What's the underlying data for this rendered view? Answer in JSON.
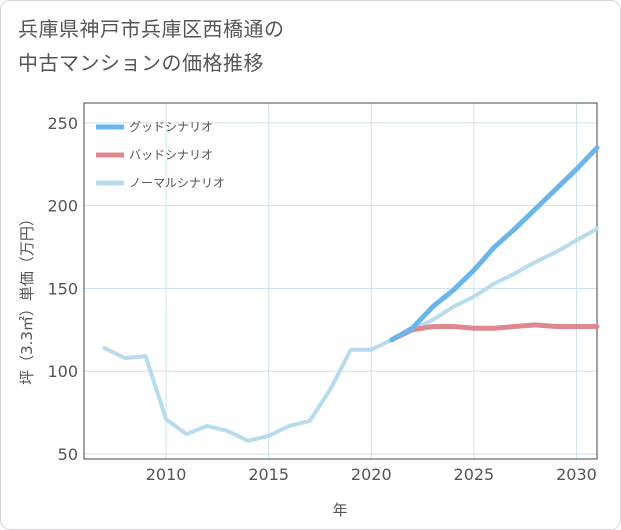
{
  "title": {
    "line1": "兵庫県神戸市兵庫区西橋通の",
    "line2": "中古マンションの価格推移"
  },
  "chart_data": {
    "type": "line",
    "xlabel": "年",
    "ylabel": "坪（3.3㎡）単価（万円）",
    "xlim": [
      2006,
      2031
    ],
    "ylim": [
      47,
      262
    ],
    "xticks": [
      2010,
      2015,
      2020,
      2025,
      2030
    ],
    "yticks": [
      50,
      100,
      150,
      200,
      250
    ],
    "grid": true,
    "legend_position": "top-left",
    "series": [
      {
        "name": "グッドシナリオ",
        "color": "#6cb5ea",
        "x": [
          2021,
          2022,
          2023,
          2024,
          2025,
          2026,
          2027,
          2028,
          2029,
          2030,
          2031
        ],
        "values": [
          119,
          126,
          139,
          149,
          161,
          175,
          186,
          198,
          210,
          222,
          235
        ]
      },
      {
        "name": "バッドシナリオ",
        "color": "#e08890",
        "x": [
          2021,
          2022,
          2023,
          2024,
          2025,
          2026,
          2027,
          2028,
          2029,
          2030,
          2031
        ],
        "values": [
          119,
          125,
          127,
          127,
          126,
          126,
          127,
          128,
          127,
          127,
          127
        ]
      },
      {
        "name": "ノーマルシナリオ",
        "color": "#b8dcee",
        "x": [
          2007,
          2008,
          2009,
          2010,
          2011,
          2012,
          2013,
          2014,
          2015,
          2016,
          2017,
          2018,
          2019,
          2020,
          2021,
          2022,
          2023,
          2024,
          2025,
          2026,
          2027,
          2028,
          2029,
          2030,
          2031
        ],
        "values": [
          114,
          108,
          109,
          71,
          62,
          67,
          64,
          58,
          61,
          67,
          70,
          89,
          113,
          113,
          119,
          125,
          131,
          139,
          145,
          153,
          159,
          166,
          172,
          179,
          186
        ]
      }
    ]
  }
}
